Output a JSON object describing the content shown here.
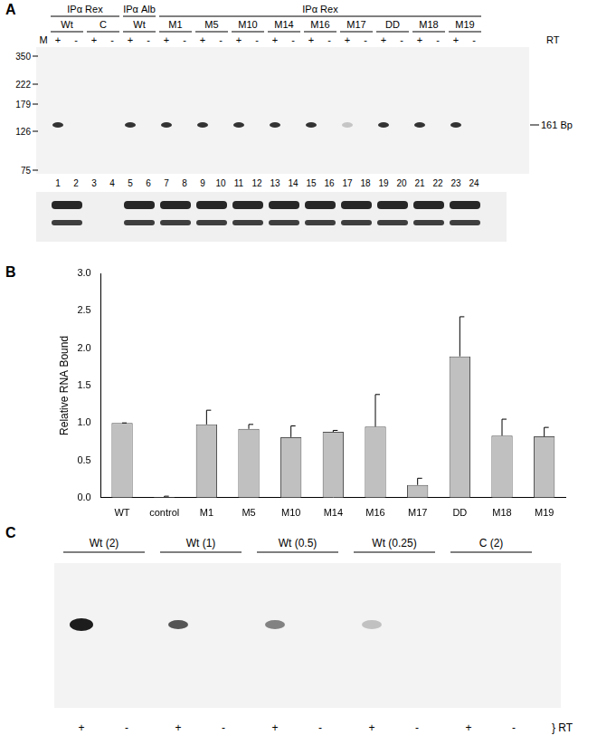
{
  "panel_labels": [
    "A",
    "B",
    "C"
  ],
  "panel_a": {
    "header_groups": [
      {
        "label": "IPα Rex",
        "lanes": [
          "Wt",
          "C"
        ]
      },
      {
        "label": "IPα Alb",
        "lanes": [
          "Wt"
        ]
      },
      {
        "label": "IPα Rex",
        "lanes": [
          "M1",
          "M5",
          "M10",
          "M14",
          "M16",
          "M17",
          "DD",
          "M18",
          "M19"
        ]
      }
    ],
    "rt_signs": [
      "+",
      "-"
    ],
    "rt_label": "RT",
    "marker_label": "M",
    "marker_sizes": [
      350,
      222,
      179,
      126,
      75
    ],
    "band_label": "161 Bp",
    "lane_numbers": [
      1,
      2,
      3,
      4,
      5,
      6,
      7,
      8,
      9,
      10,
      11,
      12,
      13,
      14,
      15,
      16,
      17,
      18,
      19,
      20,
      21,
      22,
      23,
      24
    ]
  },
  "chart_data": {
    "type": "bar",
    "y_label": "Relative RNA Bound",
    "categories": [
      "WT",
      "control",
      "M1",
      "M5",
      "M10",
      "M14",
      "M16",
      "M17",
      "DD",
      "M18",
      "M19"
    ],
    "values": [
      1.0,
      0.01,
      0.98,
      0.92,
      0.81,
      0.88,
      0.95,
      0.17,
      1.89,
      0.83,
      0.82
    ],
    "errors": [
      0,
      0.01,
      0.19,
      0.06,
      0.15,
      0.02,
      0.43,
      0.09,
      0.53,
      0.22,
      0.12
    ],
    "color": "#c0c0c0",
    "ylim": [
      0,
      3
    ],
    "yticks": [
      {
        "value": 0,
        "label": "0.0"
      },
      0.5,
      {
        "value": 1,
        "label": "1.0"
      },
      1.5,
      {
        "value": 2,
        "label": "2.0"
      },
      2.5,
      {
        "value": 3,
        "label": "3.0"
      }
    ],
    "grid": false
  },
  "panel_c": {
    "groups": [
      "Wt (2)",
      "Wt (1)",
      "Wt (0.5)",
      "Wt (0.25)",
      "C (2)"
    ],
    "rt_signs": [
      "+",
      "-"
    ],
    "rt_label": "} RT"
  }
}
